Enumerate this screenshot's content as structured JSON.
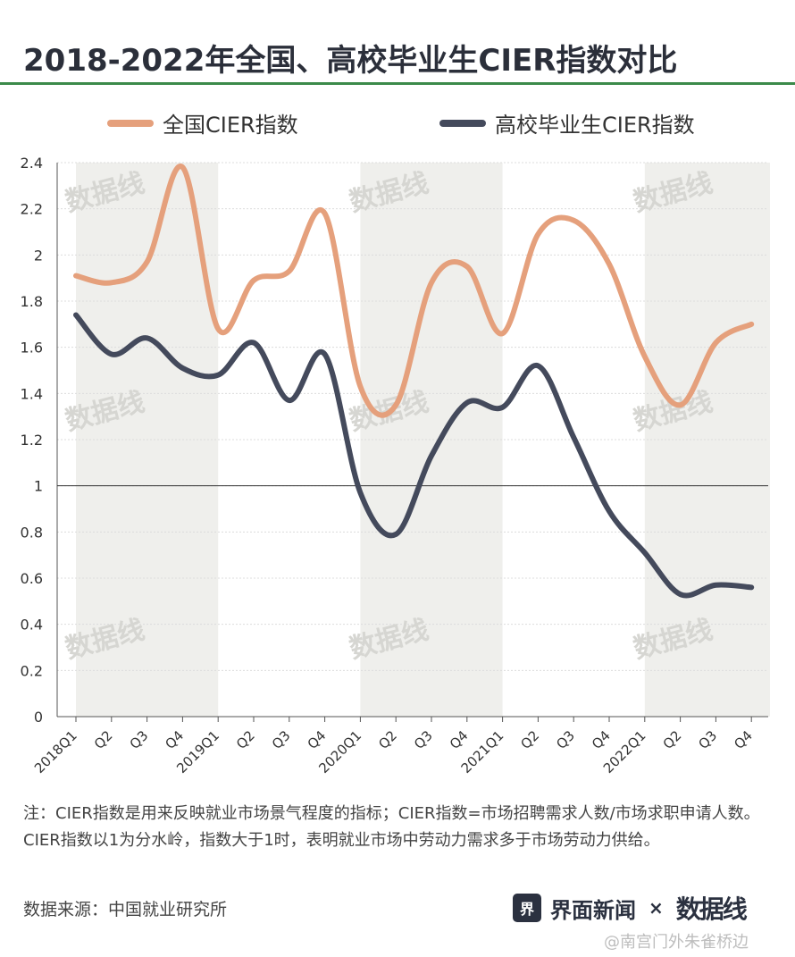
{
  "title": "2018-2022年全国、高校毕业生CIER指数对比",
  "colors": {
    "national": "#e5a07c",
    "graduate": "#444a5c",
    "band": "#efefec",
    "rule": "#3b8a4a"
  },
  "legend": [
    {
      "label": "全国CIER指数",
      "color": "#e5a07c"
    },
    {
      "label": "高校毕业生CIER指数",
      "color": "#444a5c"
    }
  ],
  "chart_data": {
    "type": "line",
    "categories": [
      "2018Q1",
      "Q2",
      "Q3",
      "Q4",
      "2019Q1",
      "Q2",
      "Q3",
      "Q4",
      "2020Q1",
      "Q2",
      "Q3",
      "Q4",
      "2021Q1",
      "Q2",
      "Q3",
      "Q4",
      "2022Q1",
      "Q2",
      "Q3",
      "Q4"
    ],
    "series": [
      {
        "name": "全国CIER指数",
        "values": [
          1.91,
          1.88,
          1.97,
          2.38,
          1.68,
          1.89,
          1.93,
          2.18,
          1.43,
          1.35,
          1.88,
          1.95,
          1.66,
          2.09,
          2.15,
          1.96,
          1.56,
          1.35,
          1.62,
          1.7
        ]
      },
      {
        "name": "高校毕业生CIER指数",
        "values": [
          1.74,
          1.57,
          1.64,
          1.51,
          1.48,
          1.62,
          1.37,
          1.57,
          0.97,
          0.79,
          1.13,
          1.36,
          1.34,
          1.52,
          1.21,
          0.89,
          0.71,
          0.53,
          0.57,
          0.56
        ]
      }
    ],
    "ylim": [
      0,
      2.4
    ],
    "yticks": [
      "0",
      "0.2",
      "0.4",
      "0.6",
      "0.8",
      "1",
      "1.2",
      "1.4",
      "1.6",
      "1.8",
      "2",
      "2.2",
      "2.4"
    ],
    "reference_line": 1,
    "grid": true,
    "xlabel": "",
    "ylabel": ""
  },
  "watermark_text": "数据线",
  "note": "注：CIER指数是用来反映就业市场景气程度的指标；CIER指数=市场招聘需求人数/市场求职申请人数。CIER指数以1为分水岭，指数大于1时，表明就业市场中劳动力需求多于市场劳动力供给。",
  "source": "数据来源：中国就业研究所",
  "brand": {
    "icon": "界",
    "name": "界面新闻",
    "separator": "×",
    "partner": "数据线"
  },
  "credit": "@南宫门外朱雀桥边"
}
